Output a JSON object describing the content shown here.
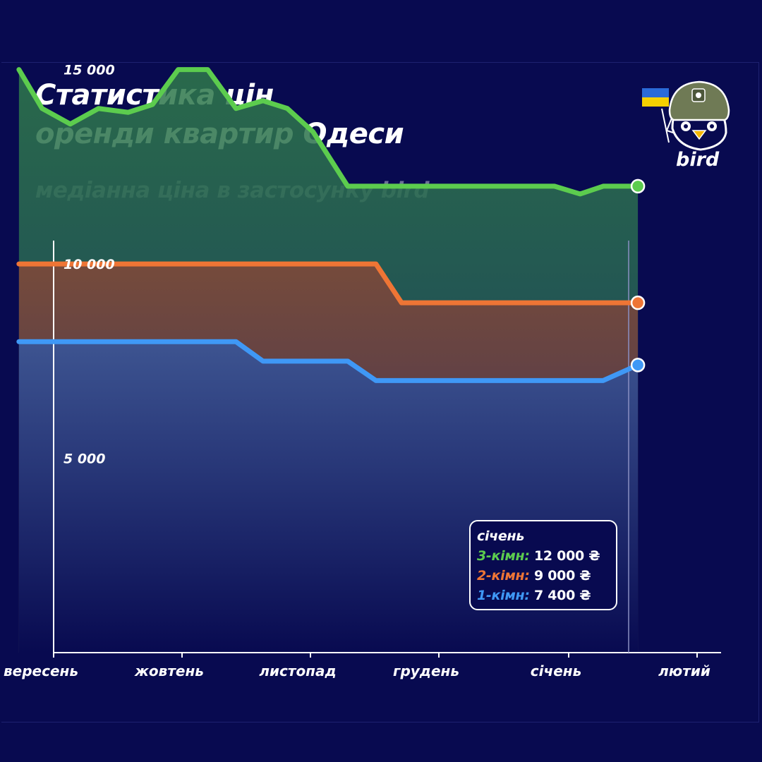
{
  "header": {
    "title_line1": "Статистика цін",
    "title_line2": "оренди квартир Одеси",
    "subtitle": "медіанна ціна в застосунку bird"
  },
  "brand": {
    "name": "bird",
    "icon": "bird-helmet-icon",
    "flag_icon": "ukraine-flag-icon"
  },
  "colors": {
    "background": "#080a50",
    "three_room": "#5ccc4e",
    "two_room": "#ee7535",
    "one_room": "#3f98f6",
    "muted_text": "#6d7097"
  },
  "chart_data": {
    "type": "area",
    "xlabels": [
      "вересень",
      "жовтень",
      "листопад",
      "грудень",
      "січень",
      "лютий"
    ],
    "yticks": [
      "15 000",
      "10 000",
      "5 000"
    ],
    "ytick_values": [
      15000,
      10000,
      5000
    ],
    "ylim": [
      0,
      16500
    ],
    "xlim": [
      0,
      5
    ],
    "series": [
      {
        "key": "three_room",
        "x": [
          -0.27,
          -0.09,
          0.13,
          0.35,
          0.58,
          0.77,
          0.97,
          1.2,
          1.42,
          1.63,
          1.82,
          2.02,
          2.29,
          2.51,
          2.71,
          3.03,
          3.23,
          3.45,
          3.68,
          3.9,
          4.1,
          4.28,
          4.55
        ],
        "values": [
          15000,
          14000,
          13600,
          14000,
          13900,
          14100,
          15000,
          15000,
          14000,
          14200,
          14000,
          13400,
          12000,
          12000,
          12000,
          12000,
          12000,
          12000,
          12000,
          12000,
          11800,
          12000,
          12000
        ]
      },
      {
        "key": "two_room",
        "x": [
          -0.27,
          2.51,
          2.71,
          4.55
        ],
        "values": [
          10000,
          10000,
          9000,
          9000
        ]
      },
      {
        "key": "one_room",
        "x": [
          -0.27,
          1.42,
          1.63,
          2.29,
          2.51,
          2.71,
          4.28,
          4.55
        ],
        "values": [
          8000,
          8000,
          7500,
          7500,
          7000,
          7000,
          7000,
          7400
        ]
      }
    ]
  },
  "legend": {
    "month": "січень",
    "rows": [
      {
        "key": "three_room",
        "label": "3-кімн:",
        "value": "12 000 ₴"
      },
      {
        "key": "two_room",
        "label": "2-кімн:",
        "value": "9 000 ₴"
      },
      {
        "key": "one_room",
        "label": "1-кімн:",
        "value": "7 400 ₴"
      }
    ]
  }
}
